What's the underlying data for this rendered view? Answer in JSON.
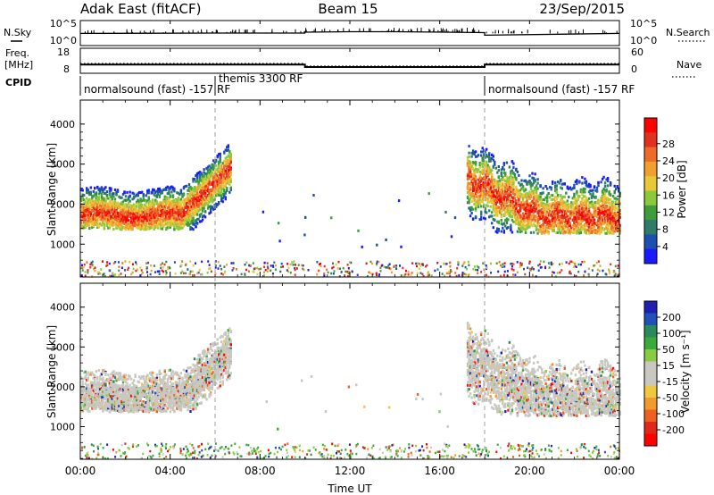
{
  "header": {
    "radar": "Adak East (fitACF)",
    "beam": "Beam 15",
    "date": "23/Sep/2015"
  },
  "noise_panel": {
    "left_label": "N.Sky",
    "left_ticks": [
      "10^5",
      "10^0"
    ],
    "right_label": "N.Search",
    "right_ticks": [
      "10^5",
      "10^0"
    ]
  },
  "freq_panel": {
    "left_label_1": "Freq.",
    "left_label_2": "[MHz]",
    "left_ticks": [
      "18",
      "8"
    ],
    "right_label": "Nave",
    "right_ticks": [
      "60",
      "0"
    ]
  },
  "cpid_panel": {
    "label": "CPID",
    "segments": [
      {
        "label": "normalsound (fast) -157 RF",
        "start_h": 0,
        "end_h": 6
      },
      {
        "label": "themis 3300 RF",
        "start_h": 6,
        "end_h": 18
      },
      {
        "label": "normalsound (fast) -157 RF",
        "start_h": 18,
        "end_h": 24
      }
    ]
  },
  "x_axis": {
    "label": "Time UT",
    "ticks": [
      "00:00",
      "04:00",
      "08:00",
      "12:00",
      "16:00",
      "20:00",
      "00:00"
    ],
    "tick_hours": [
      0,
      4,
      8,
      12,
      16,
      20,
      24
    ]
  },
  "power_panel": {
    "ylabel": "Slant Range [km]",
    "yticks": [
      "1000",
      "2000",
      "3000",
      "4000"
    ],
    "colorbar_label": "Power [dB]",
    "colorbar_ticks": [
      "4",
      "8",
      "12",
      "16",
      "20",
      "24",
      "28"
    ],
    "colors": [
      "#1a1aff",
      "#1c4fb0",
      "#2f7a6a",
      "#3f9c3a",
      "#8cc83c",
      "#e6c838",
      "#f0a030",
      "#ee6a28",
      "#e03020",
      "#ff0000"
    ]
  },
  "velocity_panel": {
    "ylabel": "Slant Range [km]",
    "yticks": [
      "1000",
      "2000",
      "3000",
      "4000"
    ],
    "colorbar_label": "Velocity [m s⁻¹]",
    "colorbar_ticks": [
      "200",
      "100",
      "50",
      "15",
      "-15",
      "-50",
      "-100",
      "-200"
    ],
    "colors": [
      "#2020b0",
      "#2050b8",
      "#2a8a5a",
      "#3aaa3a",
      "#88cc44",
      "#c8c8c0",
      "#c8c8c0",
      "#f0c840",
      "#f09a30",
      "#ee6020",
      "#e02818",
      "#ff0000"
    ]
  },
  "chart_data": {
    "type": "heatmap",
    "x_range_hours": [
      0,
      24
    ],
    "y_range_km": [
      180,
      4600
    ],
    "gate_lines_hours": [
      6,
      18
    ],
    "noise_sky_level": [
      [
        0,
        2.2
      ],
      [
        6,
        2.3
      ],
      [
        10,
        2.3
      ],
      [
        10,
        2.5
      ],
      [
        12,
        2.6
      ],
      [
        14,
        2.6
      ],
      [
        18,
        2.4
      ],
      [
        18,
        1.8
      ],
      [
        24,
        2.2
      ]
    ],
    "frequency_mhz": [
      [
        0,
        11.2
      ],
      [
        10,
        11.2
      ],
      [
        10,
        10.1
      ],
      [
        18,
        10.1
      ],
      [
        18,
        11.2
      ],
      [
        24,
        11.2
      ]
    ],
    "nave": [
      [
        0,
        22
      ],
      [
        10,
        22
      ],
      [
        10,
        15
      ],
      [
        18,
        15
      ],
      [
        18,
        22
      ],
      [
        24,
        22
      ]
    ],
    "echo_regions": [
      {
        "name": "early",
        "t": [
          0,
          6.7
        ],
        "range_km": [
          1400,
          3500
        ],
        "core_km": 1750,
        "peak_db": 28
      },
      {
        "name": "late",
        "t": [
          17.2,
          24
        ],
        "range_km": [
          1300,
          3700
        ],
        "core_km": 1700,
        "peak_db": 26
      }
    ]
  }
}
